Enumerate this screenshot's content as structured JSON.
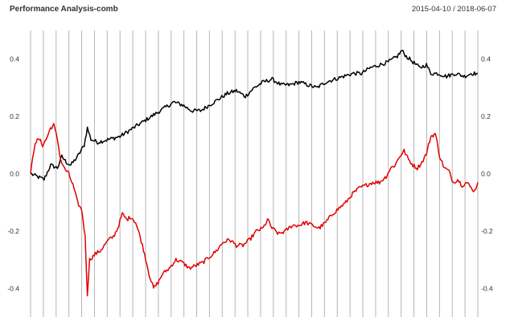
{
  "header": {
    "title": "Performance Analysis-comb",
    "date_range": "2015-04-10 / 2018-06-07"
  },
  "chart_data": {
    "type": "line",
    "title": "Performance Analysis-comb",
    "xlabel": "",
    "ylabel": "",
    "date_range": "2015-04-10 / 2018-06-07",
    "x": [
      0,
      5,
      10,
      15,
      20,
      25,
      30,
      35,
      40,
      45,
      50,
      55,
      60,
      65,
      70,
      75,
      80,
      85,
      90,
      95,
      100
    ],
    "ylim": [
      -0.5,
      0.5
    ],
    "y_ticks": [
      -0.4,
      -0.2,
      0.0,
      0.2,
      0.4
    ],
    "y_tick_labels": [
      "-0.4",
      "-0.2",
      "0.0",
      "0.2",
      "0.4"
    ],
    "grid": true,
    "vertical_grid_lines": 36,
    "legend": "none",
    "series": [
      {
        "color": "#000000",
        "points": [
          [
            0.0,
            0.0
          ],
          [
            1.5,
            -0.01
          ],
          [
            3.0,
            -0.02
          ],
          [
            4.5,
            0.03
          ],
          [
            6.0,
            0.02
          ],
          [
            7.0,
            0.06
          ],
          [
            8.0,
            0.04
          ],
          [
            9.0,
            0.03
          ],
          [
            10.5,
            0.06
          ],
          [
            12.0,
            0.1
          ],
          [
            12.7,
            0.16
          ],
          [
            13.5,
            0.12
          ],
          [
            15.0,
            0.11
          ],
          [
            17.5,
            0.12
          ],
          [
            20.0,
            0.13
          ],
          [
            22.0,
            0.15
          ],
          [
            24.0,
            0.17
          ],
          [
            26.0,
            0.19
          ],
          [
            28.0,
            0.21
          ],
          [
            30.0,
            0.23
          ],
          [
            32.0,
            0.25
          ],
          [
            34.0,
            0.24
          ],
          [
            36.0,
            0.22
          ],
          [
            38.0,
            0.22
          ],
          [
            40.0,
            0.24
          ],
          [
            42.0,
            0.26
          ],
          [
            44.0,
            0.28
          ],
          [
            46.0,
            0.29
          ],
          [
            48.0,
            0.27
          ],
          [
            50.0,
            0.3
          ],
          [
            52.0,
            0.32
          ],
          [
            54.0,
            0.33
          ],
          [
            56.0,
            0.31
          ],
          [
            58.0,
            0.31
          ],
          [
            60.0,
            0.32
          ],
          [
            62.0,
            0.31
          ],
          [
            64.0,
            0.3
          ],
          [
            66.0,
            0.32
          ],
          [
            68.0,
            0.33
          ],
          [
            70.0,
            0.34
          ],
          [
            72.0,
            0.35
          ],
          [
            74.0,
            0.35
          ],
          [
            76.0,
            0.37
          ],
          [
            78.0,
            0.38
          ],
          [
            80.0,
            0.39
          ],
          [
            82.0,
            0.41
          ],
          [
            83.0,
            0.43
          ],
          [
            84.0,
            0.41
          ],
          [
            85.5,
            0.39
          ],
          [
            87.0,
            0.37
          ],
          [
            88.5,
            0.38
          ],
          [
            89.5,
            0.35
          ],
          [
            91.0,
            0.35
          ],
          [
            93.0,
            0.34
          ],
          [
            95.0,
            0.35
          ],
          [
            97.0,
            0.34
          ],
          [
            98.5,
            0.35
          ],
          [
            100.0,
            0.35
          ]
        ]
      },
      {
        "color": "#e00000",
        "points": [
          [
            0.0,
            0.0
          ],
          [
            1.0,
            0.11
          ],
          [
            2.0,
            0.12
          ],
          [
            2.7,
            0.1
          ],
          [
            3.5,
            0.12
          ],
          [
            4.5,
            0.16
          ],
          [
            5.2,
            0.17
          ],
          [
            6.0,
            0.12
          ],
          [
            6.7,
            0.05
          ],
          [
            7.5,
            0.02
          ],
          [
            8.5,
            0.0
          ],
          [
            9.5,
            -0.04
          ],
          [
            10.5,
            -0.1
          ],
          [
            11.5,
            -0.13
          ],
          [
            12.2,
            -0.22
          ],
          [
            12.7,
            -0.42
          ],
          [
            13.2,
            -0.3
          ],
          [
            14.5,
            -0.28
          ],
          [
            15.5,
            -0.27
          ],
          [
            16.5,
            -0.25
          ],
          [
            17.5,
            -0.23
          ],
          [
            18.5,
            -0.22
          ],
          [
            19.5,
            -0.19
          ],
          [
            20.5,
            -0.14
          ],
          [
            21.5,
            -0.16
          ],
          [
            22.5,
            -0.15
          ],
          [
            23.5,
            -0.17
          ],
          [
            24.5,
            -0.22
          ],
          [
            25.5,
            -0.28
          ],
          [
            26.5,
            -0.35
          ],
          [
            27.5,
            -0.4
          ],
          [
            28.5,
            -0.38
          ],
          [
            29.5,
            -0.35
          ],
          [
            31.0,
            -0.33
          ],
          [
            32.5,
            -0.3
          ],
          [
            34.0,
            -0.31
          ],
          [
            35.5,
            -0.33
          ],
          [
            37.0,
            -0.32
          ],
          [
            38.5,
            -0.31
          ],
          [
            40.0,
            -0.29
          ],
          [
            41.5,
            -0.27
          ],
          [
            43.0,
            -0.24
          ],
          [
            44.5,
            -0.23
          ],
          [
            46.0,
            -0.25
          ],
          [
            47.5,
            -0.25
          ],
          [
            49.0,
            -0.23
          ],
          [
            50.5,
            -0.2
          ],
          [
            52.0,
            -0.19
          ],
          [
            53.0,
            -0.16
          ],
          [
            54.0,
            -0.19
          ],
          [
            55.5,
            -0.21
          ],
          [
            57.0,
            -0.2
          ],
          [
            58.5,
            -0.18
          ],
          [
            60.0,
            -0.18
          ],
          [
            61.5,
            -0.17
          ],
          [
            63.0,
            -0.18
          ],
          [
            64.5,
            -0.19
          ],
          [
            66.0,
            -0.17
          ],
          [
            67.5,
            -0.14
          ],
          [
            69.0,
            -0.12
          ],
          [
            70.5,
            -0.1
          ],
          [
            72.0,
            -0.07
          ],
          [
            73.5,
            -0.05
          ],
          [
            75.0,
            -0.04
          ],
          [
            76.5,
            -0.03
          ],
          [
            78.0,
            -0.03
          ],
          [
            79.5,
            -0.01
          ],
          [
            80.5,
            0.02
          ],
          [
            81.5,
            0.03
          ],
          [
            82.5,
            0.06
          ],
          [
            83.5,
            0.08
          ],
          [
            84.5,
            0.05
          ],
          [
            85.5,
            0.03
          ],
          [
            86.5,
            0.02
          ],
          [
            87.5,
            0.04
          ],
          [
            88.5,
            0.07
          ],
          [
            89.5,
            0.13
          ],
          [
            90.5,
            0.14
          ],
          [
            91.5,
            0.06
          ],
          [
            92.5,
            0.02
          ],
          [
            93.5,
            0.01
          ],
          [
            94.5,
            -0.03
          ],
          [
            95.5,
            -0.02
          ],
          [
            96.5,
            -0.04
          ],
          [
            97.5,
            -0.03
          ],
          [
            98.5,
            -0.05
          ],
          [
            99.3,
            -0.06
          ],
          [
            100.0,
            -0.03
          ]
        ]
      }
    ]
  }
}
